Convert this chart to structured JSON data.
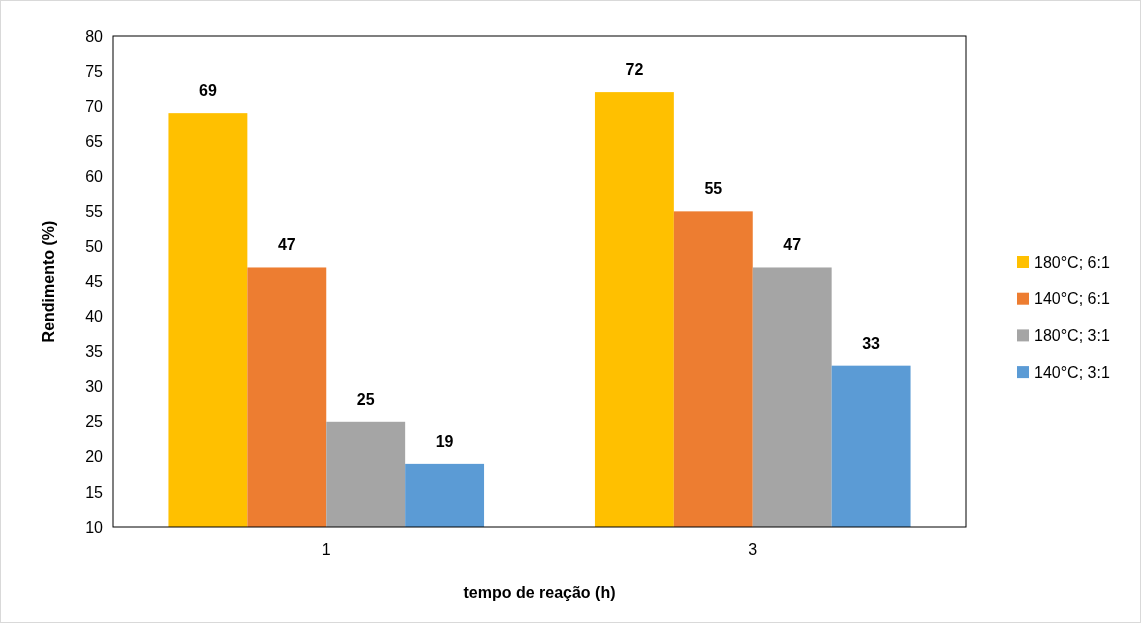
{
  "chart_data": {
    "type": "bar",
    "xlabel": "tempo de reação (h)",
    "ylabel": "Rendimento (%)",
    "categories": [
      "1",
      "3"
    ],
    "series": [
      {
        "name": "180°C; 6:1",
        "color": "#ffc000",
        "values": [
          69,
          72
        ]
      },
      {
        "name": "140°C; 6:1",
        "color": "#ed7d31",
        "values": [
          47,
          55
        ]
      },
      {
        "name": "180°C; 3:1",
        "color": "#a5a5a5",
        "values": [
          25,
          47
        ]
      },
      {
        "name": "140°C; 3:1",
        "color": "#5b9bd5",
        "values": [
          19,
          33
        ]
      }
    ],
    "ylim": [
      10,
      80
    ],
    "yticks": [
      10,
      15,
      20,
      25,
      30,
      35,
      40,
      45,
      50,
      55,
      60,
      65,
      70,
      75,
      80
    ],
    "data_labels": true,
    "legend": "right",
    "grid": false
  }
}
